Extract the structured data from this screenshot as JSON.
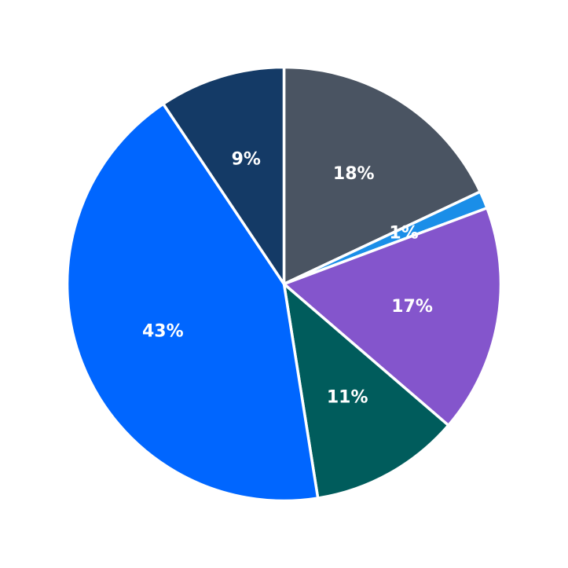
{
  "chart_data": {
    "type": "pie",
    "title": "",
    "start_angle_deg": 90,
    "direction": "clockwise",
    "slices": [
      {
        "value": 18.0,
        "label": "18%",
        "color": "#4a5462"
      },
      {
        "value": 1.3,
        "label": "1%",
        "color": "#1a8ee8"
      },
      {
        "value": 17.0,
        "label": "17%",
        "color": "#8455cc"
      },
      {
        "value": 11.2,
        "label": "11%",
        "color": "#005c5c"
      },
      {
        "value": 43.1,
        "label": "43%",
        "color": "#0066ff"
      },
      {
        "value": 9.4,
        "label": "9%",
        "color": "#143a66"
      }
    ]
  }
}
